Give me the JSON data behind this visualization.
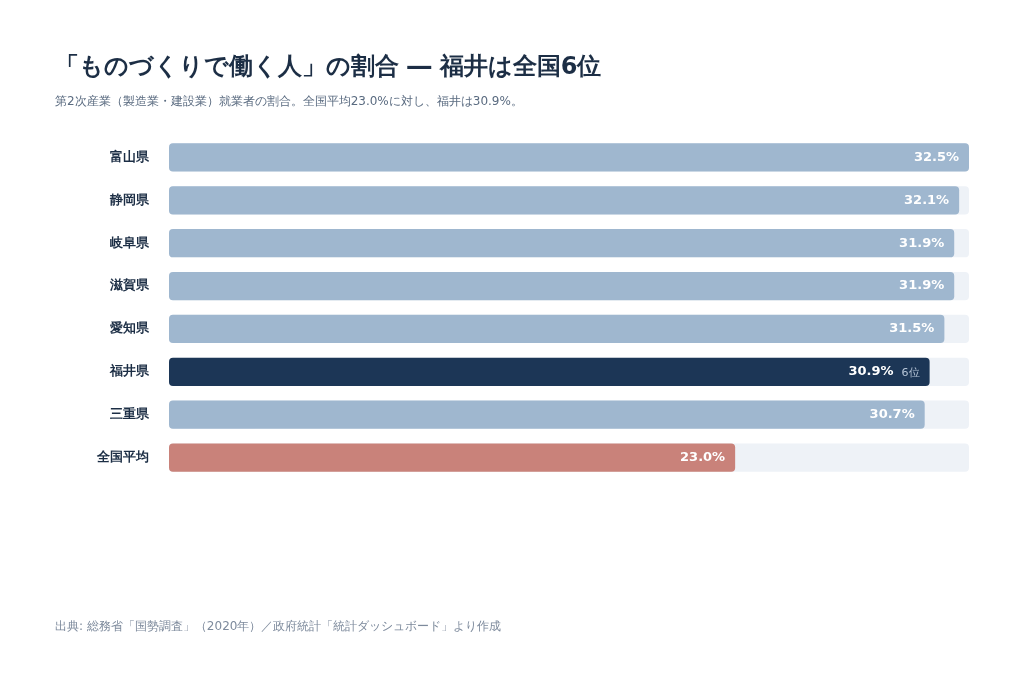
{
  "chart_data": {
    "type": "bar",
    "orientation": "horizontal",
    "title": "「ものづくりで働く人」の割合 ― 福井は全国6位",
    "subtitle": "第2次産業（製造業・建設業）就業者の割合。全国平均23.0%に対し、福井は30.9%。",
    "categories": [
      "富山県",
      "静岡県",
      "岐阜県",
      "滋賀県",
      "愛知県",
      "福井県",
      "三重県",
      "全国平均"
    ],
    "values": [
      32.5,
      32.1,
      31.9,
      31.9,
      31.5,
      30.9,
      30.7,
      23.0
    ],
    "colors": [
      "#9fb7cf",
      "#9fb7cf",
      "#9fb7cf",
      "#9fb7cf",
      "#9fb7cf",
      "#1c3656",
      "#9fb7cf",
      "#c9827a"
    ],
    "value_labels": [
      "32.5%",
      "32.1%",
      "31.9%",
      "31.9%",
      "31.5%",
      "30.9%",
      "30.7%",
      "23.0%"
    ],
    "tick_labels": "y",
    "annotations": [
      {
        "text": "6位",
        "x": 30.9,
        "y": "福井県"
      },
      "出典: 総務省「国勢調査」（2020年）／政府統計「統計ダッシュボード」より作成"
    ]
  }
}
